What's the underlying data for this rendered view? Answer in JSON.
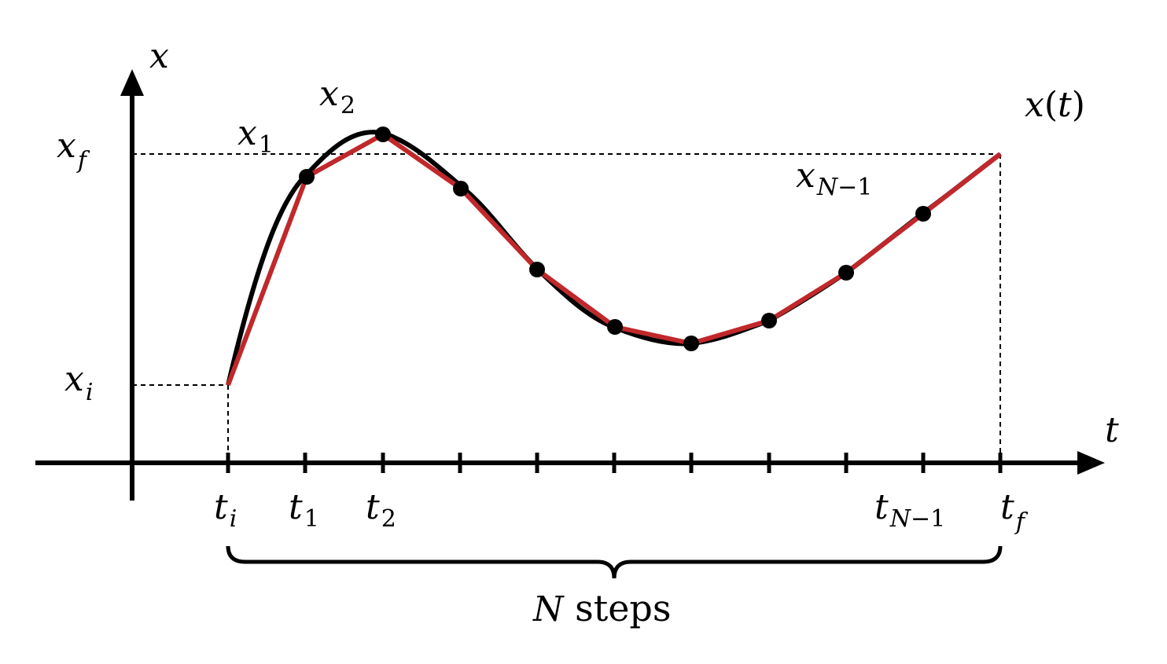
{
  "labels": {
    "axis_x": "x",
    "axis_t": "t",
    "curve": "x(t)",
    "x_f_base": "x",
    "x_f_sub": "f",
    "x_i_base": "x",
    "x_i_sub": "i",
    "x_1_base": "x",
    "x_1_sub": "1",
    "x_2_base": "x",
    "x_2_sub": "2",
    "x_n1_base": "x",
    "x_n1_sub_n": "N",
    "x_n1_sub_rest": "−1",
    "t_i_base": "t",
    "t_i_sub": "i",
    "t_1_base": "t",
    "t_1_sub": "1",
    "t_2_base": "t",
    "t_2_sub": "2",
    "t_n1_base": "t",
    "t_n1_sub_n": "N",
    "t_n1_sub_rest": "−1",
    "t_f_base": "t",
    "t_f_sub": "f",
    "steps_n": "N",
    "steps_word": " steps"
  },
  "colors": {
    "curve": "#000000",
    "path": "#c0282b",
    "points": "#000000",
    "axes": "#000000"
  }
}
